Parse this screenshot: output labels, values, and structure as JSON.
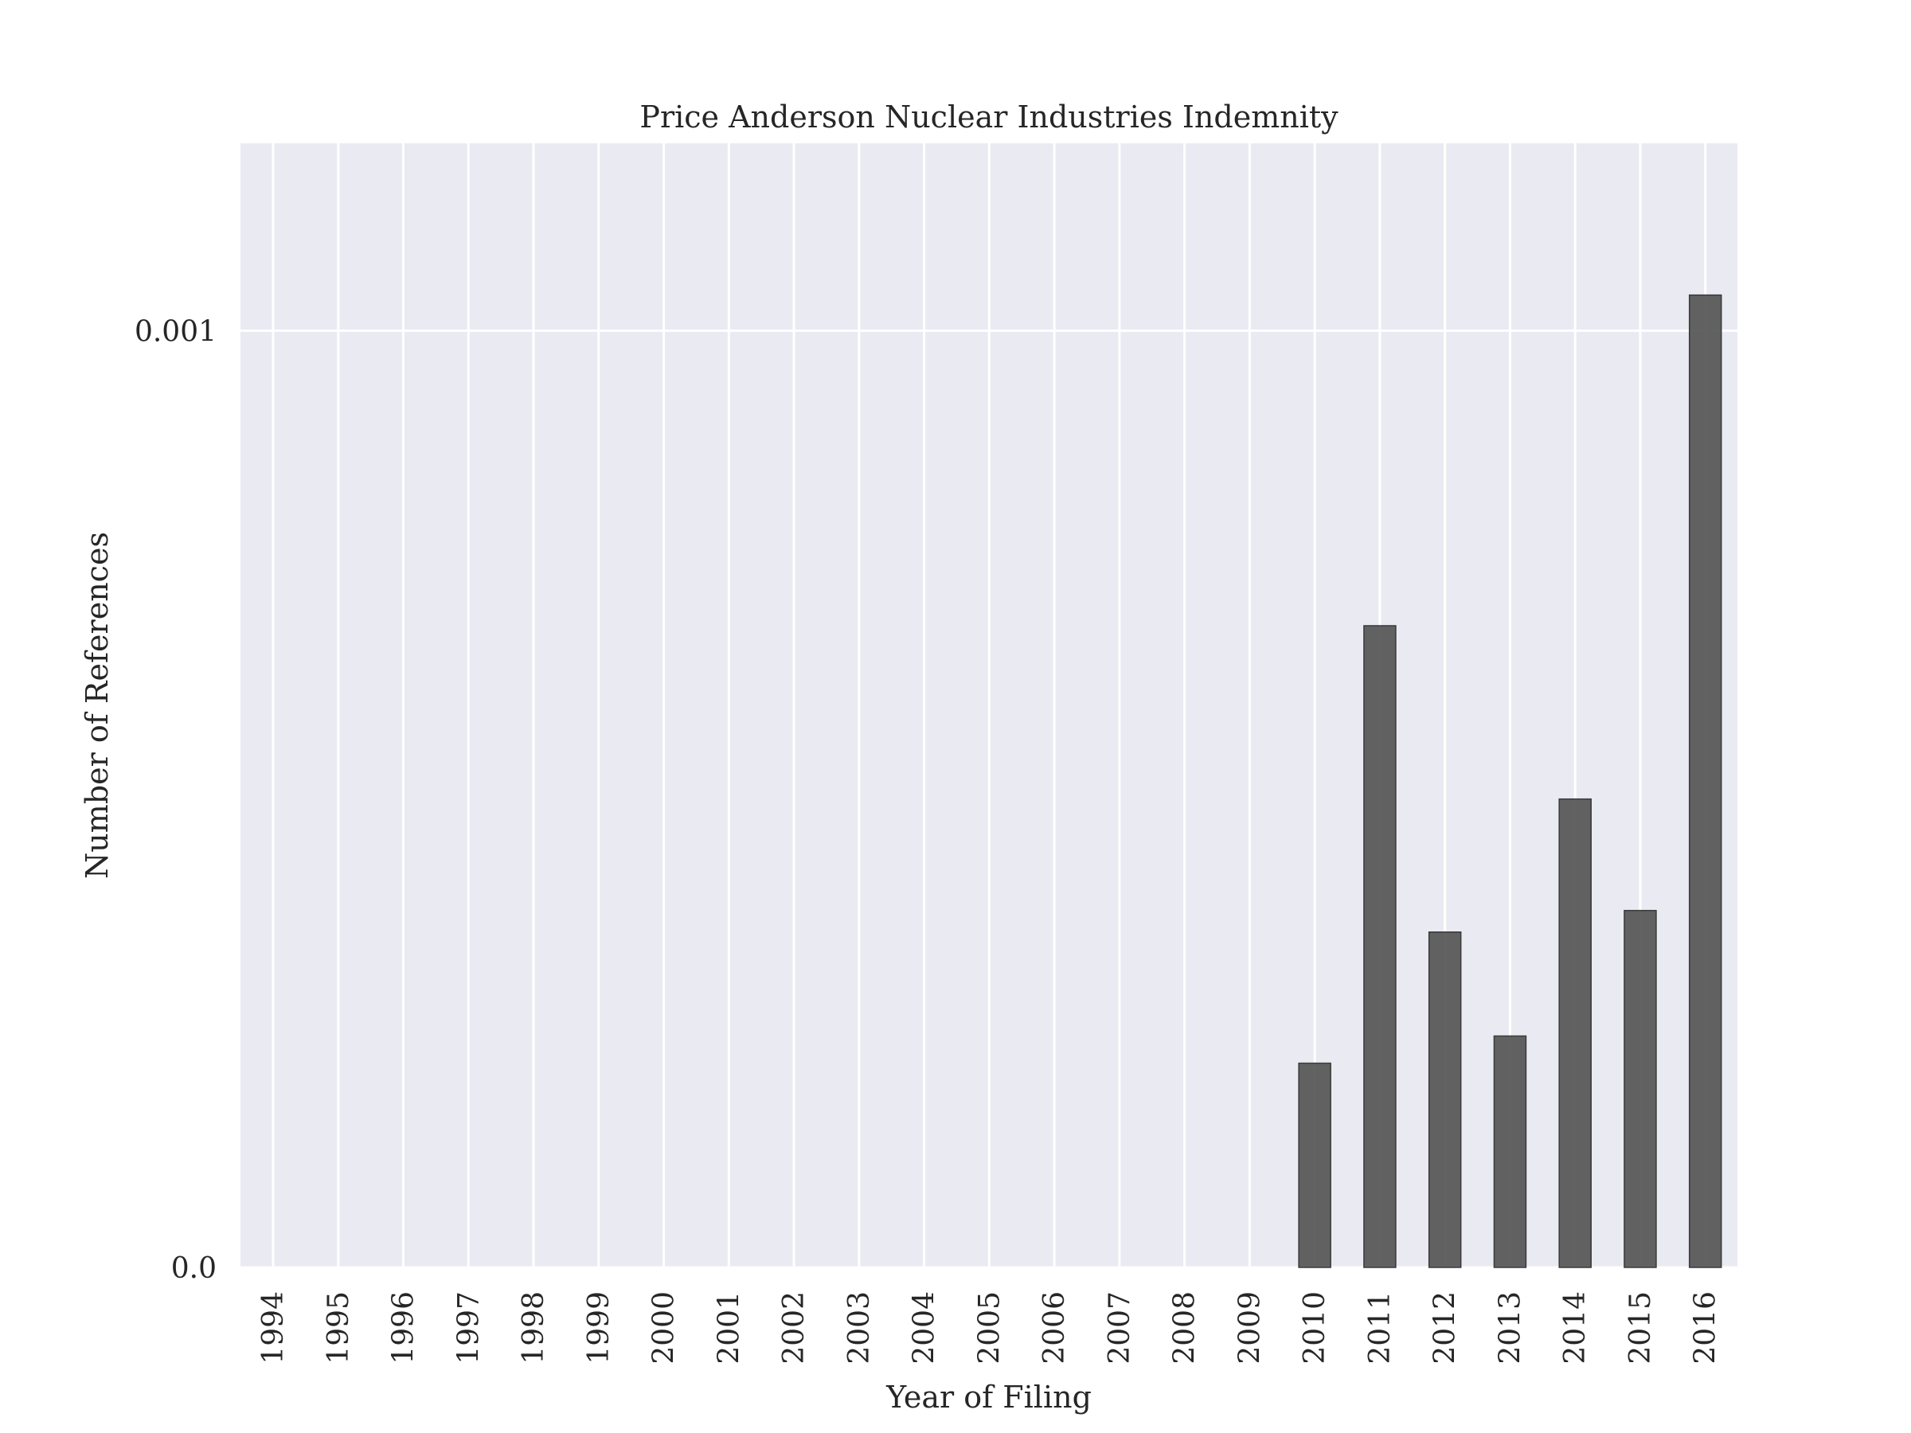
{
  "chart_data": {
    "type": "bar",
    "title": "Price Anderson Nuclear Industries Indemnity",
    "xlabel": "Year of Filing",
    "ylabel": "Number of References",
    "categories": [
      "1994",
      "1995",
      "1996",
      "1997",
      "1998",
      "1999",
      "2000",
      "2001",
      "2002",
      "2003",
      "2004",
      "2005",
      "2006",
      "2007",
      "2008",
      "2009",
      "2010",
      "2011",
      "2012",
      "2013",
      "2014",
      "2015",
      "2016"
    ],
    "values": [
      0,
      0,
      0,
      0,
      0,
      0,
      0,
      0,
      0,
      0,
      0,
      0,
      0,
      0,
      0,
      0,
      0.000218,
      0.000685,
      0.000358,
      0.000247,
      0.0005,
      0.000381,
      0.001038
    ],
    "ylim": [
      0,
      0.0012
    ],
    "yticks": [
      0.0,
      0.001
    ],
    "ytick_labels": [
      "0.0",
      "0.001"
    ],
    "grid": true,
    "legend": "none",
    "colors": {
      "bar_fill": "#5a5a5a",
      "bar_stroke": "#3a3a3a",
      "plot_background": "#eaeaf2",
      "grid": "#ffffff",
      "text": "#262626"
    }
  }
}
